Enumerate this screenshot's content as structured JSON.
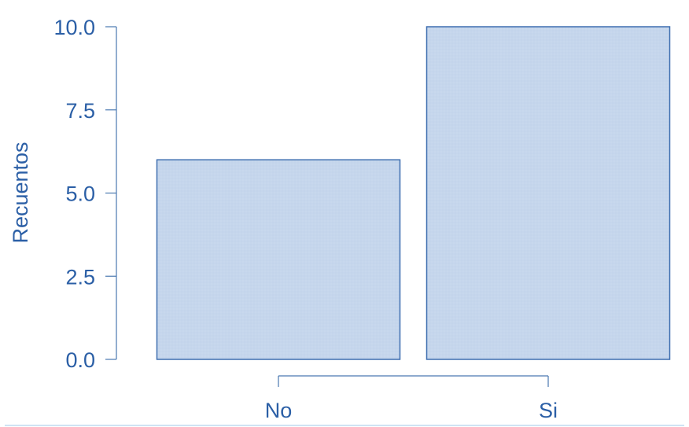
{
  "chart_data": {
    "type": "bar",
    "categories": [
      "No",
      "Si"
    ],
    "values": [
      6,
      10
    ],
    "ylabel": "Recuentos",
    "xlabel": "",
    "ylim": [
      0,
      10
    ],
    "yticks": [
      "0.0",
      "2.5",
      "5.0",
      "7.5",
      "10.0"
    ],
    "grid": false,
    "colors": {
      "bar_fill": "#c5d6ec",
      "bar_stroke": "#3f6fb0",
      "axis": "#4a78b0",
      "text": "#2b5fa6"
    }
  }
}
